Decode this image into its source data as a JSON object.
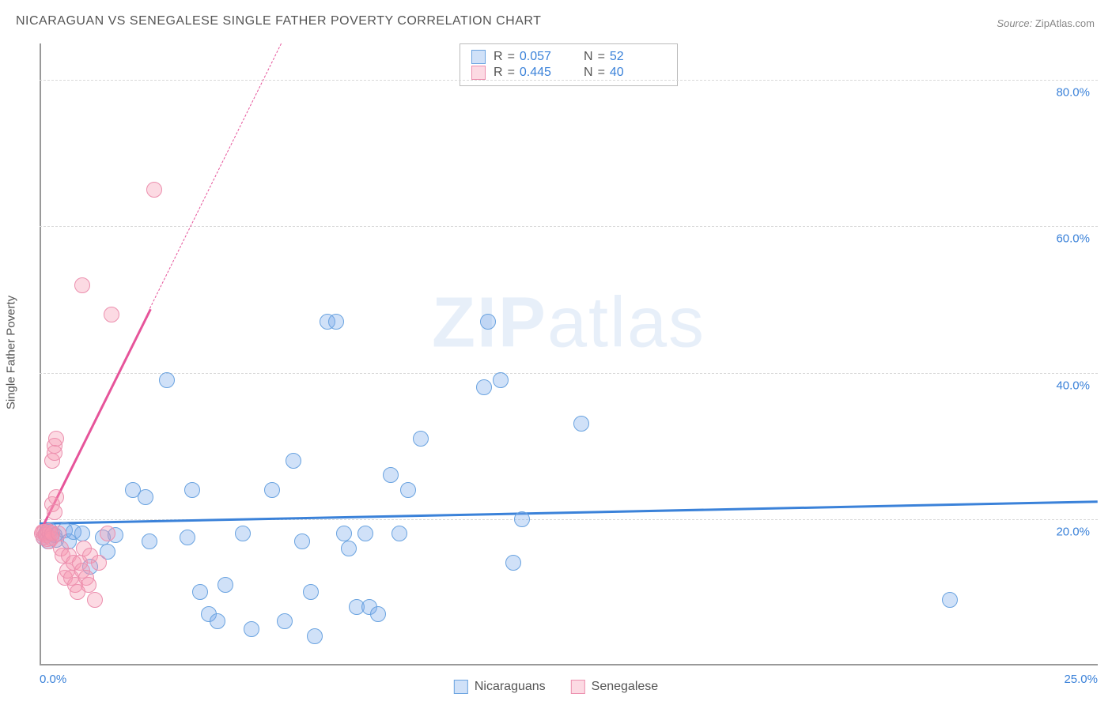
{
  "title": "NICARAGUAN VS SENEGALESE SINGLE FATHER POVERTY CORRELATION CHART",
  "source_label": "Source:",
  "source_value": "ZipAtlas.com",
  "ylabel": "Single Father Poverty",
  "watermark_a": "ZIP",
  "watermark_b": "atlas",
  "chart": {
    "type": "scatter",
    "xlim": [
      0,
      25
    ],
    "ylim": [
      0,
      85
    ],
    "x_ticks": [
      {
        "v": 0,
        "label": "0.0%"
      },
      {
        "v": 25,
        "label": "25.0%"
      }
    ],
    "y_ticks": [
      {
        "v": 20,
        "label": "20.0%"
      },
      {
        "v": 40,
        "label": "40.0%"
      },
      {
        "v": 60,
        "label": "60.0%"
      },
      {
        "v": 80,
        "label": "80.0%"
      }
    ],
    "grid_color": "#d8d8d8",
    "background_color": "#ffffff",
    "point_radius": 10,
    "series": [
      {
        "key": "nicaraguans",
        "label": "Nicaraguans",
        "fill": "rgba(120,170,235,0.35)",
        "stroke": "#6aa3e0",
        "R": "0.057",
        "N": "52",
        "trend": {
          "y_at_x0": 19.5,
          "y_at_x25": 22.5,
          "solid_until_x": 25,
          "color": "#3b82d9",
          "width": 3
        },
        "points": [
          [
            0.1,
            17.5
          ],
          [
            0.15,
            18
          ],
          [
            0.2,
            17
          ],
          [
            0.25,
            18.5
          ],
          [
            0.3,
            18
          ],
          [
            0.35,
            17.8
          ],
          [
            0.4,
            17.2
          ],
          [
            0.6,
            18.5
          ],
          [
            0.7,
            17.0
          ],
          [
            0.8,
            18.3
          ],
          [
            1.0,
            18.0
          ],
          [
            1.2,
            13.5
          ],
          [
            1.5,
            17.5
          ],
          [
            1.6,
            15.5
          ],
          [
            1.8,
            17.8
          ],
          [
            2.2,
            24
          ],
          [
            2.5,
            23
          ],
          [
            2.6,
            17
          ],
          [
            3.0,
            39
          ],
          [
            3.5,
            17.5
          ],
          [
            3.6,
            24
          ],
          [
            3.8,
            10
          ],
          [
            4.0,
            7
          ],
          [
            4.2,
            6
          ],
          [
            4.4,
            11
          ],
          [
            4.8,
            18
          ],
          [
            5.0,
            5
          ],
          [
            5.5,
            24
          ],
          [
            5.8,
            6
          ],
          [
            6.0,
            28
          ],
          [
            6.2,
            17
          ],
          [
            6.4,
            10
          ],
          [
            6.5,
            4
          ],
          [
            6.8,
            47
          ],
          [
            7.0,
            47
          ],
          [
            7.2,
            18
          ],
          [
            7.3,
            16
          ],
          [
            7.5,
            8
          ],
          [
            7.7,
            18
          ],
          [
            7.8,
            8
          ],
          [
            8.0,
            7
          ],
          [
            8.3,
            26
          ],
          [
            8.5,
            18
          ],
          [
            8.7,
            24
          ],
          [
            9.0,
            31
          ],
          [
            10.5,
            38
          ],
          [
            10.6,
            47
          ],
          [
            10.9,
            39
          ],
          [
            11.2,
            14
          ],
          [
            11.4,
            20
          ],
          [
            12.8,
            33
          ],
          [
            21.5,
            9
          ]
        ]
      },
      {
        "key": "senegalese",
        "label": "Senegalese",
        "fill": "rgba(245,150,175,0.35)",
        "stroke": "#ec8fae",
        "R": "0.445",
        "N": "40",
        "trend": {
          "y_at_x0": 18.5,
          "y_at_x25": 310,
          "solid_until_x": 2.6,
          "color": "#e6549a",
          "width": 3
        },
        "points": [
          [
            0.05,
            18
          ],
          [
            0.07,
            18.3
          ],
          [
            0.1,
            17.5
          ],
          [
            0.12,
            18.2
          ],
          [
            0.15,
            17.8
          ],
          [
            0.18,
            17.3
          ],
          [
            0.2,
            18.4
          ],
          [
            0.22,
            17.0
          ],
          [
            0.25,
            18.1
          ],
          [
            0.28,
            17.4
          ],
          [
            0.3,
            18.0
          ],
          [
            0.3,
            22
          ],
          [
            0.3,
            28
          ],
          [
            0.35,
            29
          ],
          [
            0.35,
            30
          ],
          [
            0.35,
            21
          ],
          [
            0.4,
            31
          ],
          [
            0.4,
            23
          ],
          [
            0.45,
            18
          ],
          [
            0.5,
            16
          ],
          [
            0.55,
            15
          ],
          [
            0.6,
            12
          ],
          [
            0.65,
            13
          ],
          [
            0.7,
            15
          ],
          [
            0.75,
            12
          ],
          [
            0.8,
            14
          ],
          [
            0.85,
            11
          ],
          [
            0.9,
            10
          ],
          [
            0.95,
            14
          ],
          [
            1.0,
            13
          ],
          [
            1.05,
            16
          ],
          [
            1.1,
            12
          ],
          [
            1.15,
            11
          ],
          [
            1.2,
            15
          ],
          [
            1.3,
            9
          ],
          [
            1.4,
            14
          ],
          [
            1.0,
            52
          ],
          [
            1.7,
            48
          ],
          [
            1.6,
            18
          ],
          [
            2.7,
            65
          ]
        ]
      }
    ],
    "tick_color_blue": "#3b82d9",
    "stats_text_color": "#555555"
  },
  "label_R": "R",
  "label_N": "N",
  "label_eq": "="
}
